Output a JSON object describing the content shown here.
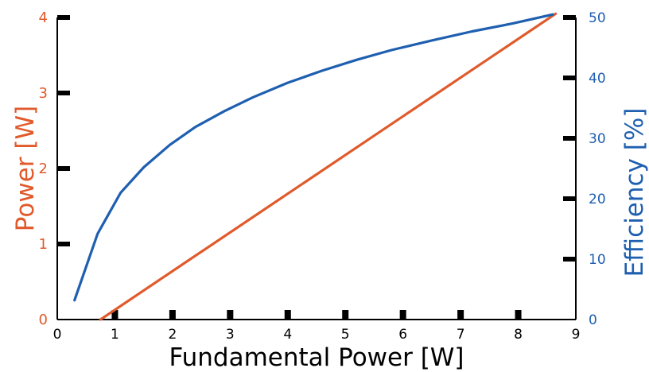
{
  "chart_data": {
    "type": "line",
    "xlabel": "Fundamental Power [W]",
    "ylabel_left": "Power [W]",
    "ylabel_right": "Efficiency [%]",
    "xlim": [
      0,
      9
    ],
    "ylim_left": [
      0,
      4
    ],
    "ylim_right": [
      0,
      50
    ],
    "x_ticks": [
      "0",
      "1",
      "2",
      "3",
      "4",
      "5",
      "6",
      "7",
      "8",
      "9"
    ],
    "y_left_ticks": [
      "0",
      "1",
      "2",
      "3",
      "4"
    ],
    "y_right_ticks": [
      "0",
      "10",
      "20",
      "30",
      "40",
      "50"
    ],
    "grid": false,
    "colors": {
      "power": "#e05a2b",
      "efficiency": "#1f5fb0",
      "axis": "#000000"
    },
    "series": [
      {
        "axis": "left",
        "color": "#e05a2b",
        "x": [
          0.75,
          8.65
        ],
        "y": [
          0.0,
          4.05
        ]
      },
      {
        "axis": "right",
        "color": "#1f5fb0",
        "x": [
          0.3,
          0.7,
          1.1,
          1.5,
          1.95,
          2.4,
          2.9,
          3.4,
          4.0,
          4.6,
          5.2,
          5.8,
          6.5,
          7.2,
          7.9,
          8.6
        ],
        "y": [
          3.2,
          14.2,
          21.0,
          25.2,
          28.9,
          31.9,
          34.5,
          36.8,
          39.2,
          41.2,
          43.0,
          44.6,
          46.2,
          47.7,
          49.0,
          50.5
        ]
      }
    ]
  }
}
